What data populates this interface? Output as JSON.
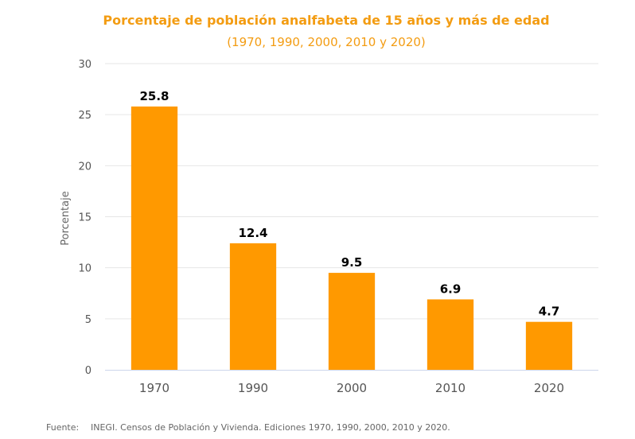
{
  "colors": {
    "title": "#f39c12",
    "bar": "#ff9900",
    "grid": "#e6e6e6",
    "axis_line": "#ccd6eb",
    "tick_text": "#555555",
    "data_label": "#000000"
  },
  "chart_data": {
    "type": "bar",
    "title": "Porcentaje de población analfabeta de 15 años y más de edad",
    "subtitle": "(1970, 1990, 2000, 2010 y 2020)",
    "xlabel": "",
    "ylabel": "Porcentaje",
    "categories": [
      "1970",
      "1990",
      "2000",
      "2010",
      "2020"
    ],
    "values": [
      25.8,
      12.4,
      9.5,
      6.9,
      4.7
    ],
    "data_labels": [
      "25.8",
      "12.4",
      "9.5",
      "6.9",
      "4.7"
    ],
    "ylim": [
      0,
      30
    ],
    "yticks": [
      0,
      5,
      10,
      15,
      20,
      25,
      30
    ],
    "grid": true,
    "legend": "none"
  },
  "source": {
    "label": "Fuente:",
    "text": "INEGI. Censos de Población y Vivienda. Ediciones 1970, 1990, 2000, 2010 y 2020."
  }
}
